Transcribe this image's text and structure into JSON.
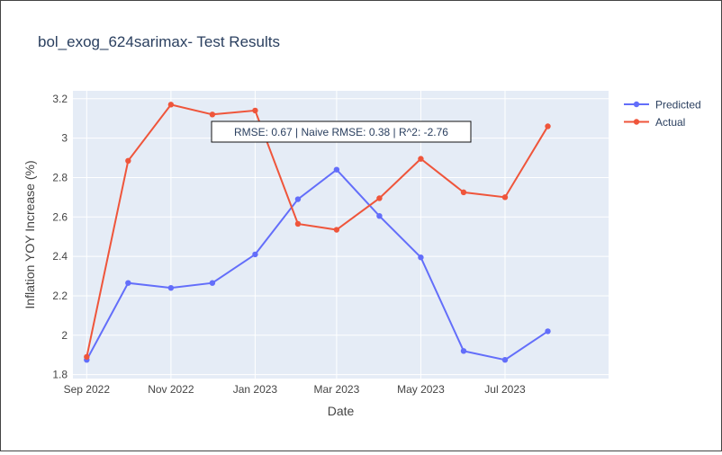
{
  "chart_data": {
    "type": "line",
    "title": "bol_exog_624sarimax- Test Results",
    "xlabel": "Date",
    "ylabel": "Inflation YOY Increase (%)",
    "x": [
      "2022-09-01",
      "2022-10-01",
      "2022-11-01",
      "2022-12-01",
      "2023-01-01",
      "2023-02-01",
      "2023-03-01",
      "2023-04-01",
      "2023-05-01",
      "2023-06-01",
      "2023-07-01",
      "2023-08-01"
    ],
    "x_ticks": [
      {
        "date": "2022-09-01",
        "label": "Sep 2022"
      },
      {
        "date": "2022-11-01",
        "label": "Nov 2022"
      },
      {
        "date": "2023-01-01",
        "label": "Jan 2023"
      },
      {
        "date": "2023-03-01",
        "label": "Mar 2023"
      },
      {
        "date": "2023-05-01",
        "label": "May 2023"
      },
      {
        "date": "2023-07-01",
        "label": "Jul 2023"
      }
    ],
    "ylim": [
      1.78,
      3.24
    ],
    "y_ticks": [
      1.8,
      2,
      2.2,
      2.4,
      2.6,
      2.8,
      3,
      3.2
    ],
    "y_tick_labels": [
      "1.8",
      "2",
      "2.2",
      "2.4",
      "2.6",
      "2.8",
      "3",
      "3.2"
    ],
    "series": [
      {
        "name": "Predicted",
        "color": "#636efa",
        "values": [
          1.875,
          2.265,
          2.24,
          2.265,
          2.41,
          2.69,
          2.84,
          2.605,
          2.395,
          1.92,
          1.875,
          2.02
        ]
      },
      {
        "name": "Actual",
        "color": "#ef553b",
        "values": [
          1.89,
          2.885,
          3.17,
          3.12,
          3.14,
          2.565,
          2.535,
          2.695,
          2.895,
          2.725,
          2.7,
          3.06
        ]
      }
    ],
    "annotation": "RMSE: 0.67 | Naive RMSE: 0.38 | R^2: -2.76",
    "grid": true,
    "legend_position": "top-right",
    "plot_bg": "#e5ecf6"
  }
}
